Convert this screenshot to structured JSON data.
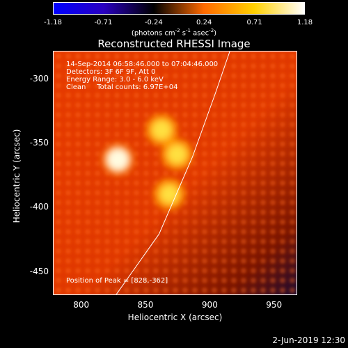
{
  "colorbar": {
    "ticks": [
      "-1.18",
      "-0.71",
      "-0.24",
      "0.24",
      "0.71",
      "1.18"
    ],
    "units_prefix": "(photons cm",
    "units_sup1": "-2",
    "units_mid1": " s",
    "units_sup2": "-1",
    "units_mid2": " asec",
    "units_sup3": "-2",
    "units_suffix": ")",
    "colors": [
      "#0000ff",
      "#2a00c0",
      "#000000",
      "#ff6a00",
      "#ffd000",
      "#ffffff"
    ]
  },
  "title": "Reconstructed RHESSI Image",
  "info": {
    "time_range": "14-Sep-2014 06:58:46.000 to 07:04:46.000",
    "detectors": "Detectors: 3F 6F 9F, Att 0",
    "energy": "Energy Range: 3.0 - 6.0 keV",
    "method": "Clean     Total counts: 6.97E+04"
  },
  "peak_label": "Position of Peak = [828,-362]",
  "axes": {
    "xlabel": "Heliocentric X (arcsec)",
    "ylabel": "Heliocentric Y (arcsec)",
    "xticks": [
      "800",
      "850",
      "900",
      "950"
    ],
    "yticks": [
      "-300",
      "-350",
      "-400",
      "-450"
    ]
  },
  "datestamp": "2-Jun-2019 12:30",
  "chart_data": {
    "type": "heatmap",
    "title": "Reconstructed RHESSI Image",
    "xlabel": "Heliocentric X (arcsec)",
    "ylabel": "Heliocentric Y (arcsec)",
    "xlim": [
      778,
      968
    ],
    "ylim": [
      -468,
      -278
    ],
    "zlim": [
      -1.18,
      1.18
    ],
    "peak": [
      828,
      -362
    ],
    "sources": [
      {
        "x": 828,
        "y": -362,
        "intensity": 1.18
      },
      {
        "x": 862,
        "y": -339,
        "intensity": 0.95
      },
      {
        "x": 874,
        "y": -358,
        "intensity": 0.9
      },
      {
        "x": 868,
        "y": -389,
        "intensity": 0.85
      }
    ],
    "limb_curve": [
      [
        826,
        -468
      ],
      [
        860,
        -420
      ],
      [
        886,
        -360
      ],
      [
        904,
        -310
      ],
      [
        915,
        -278
      ]
    ]
  }
}
